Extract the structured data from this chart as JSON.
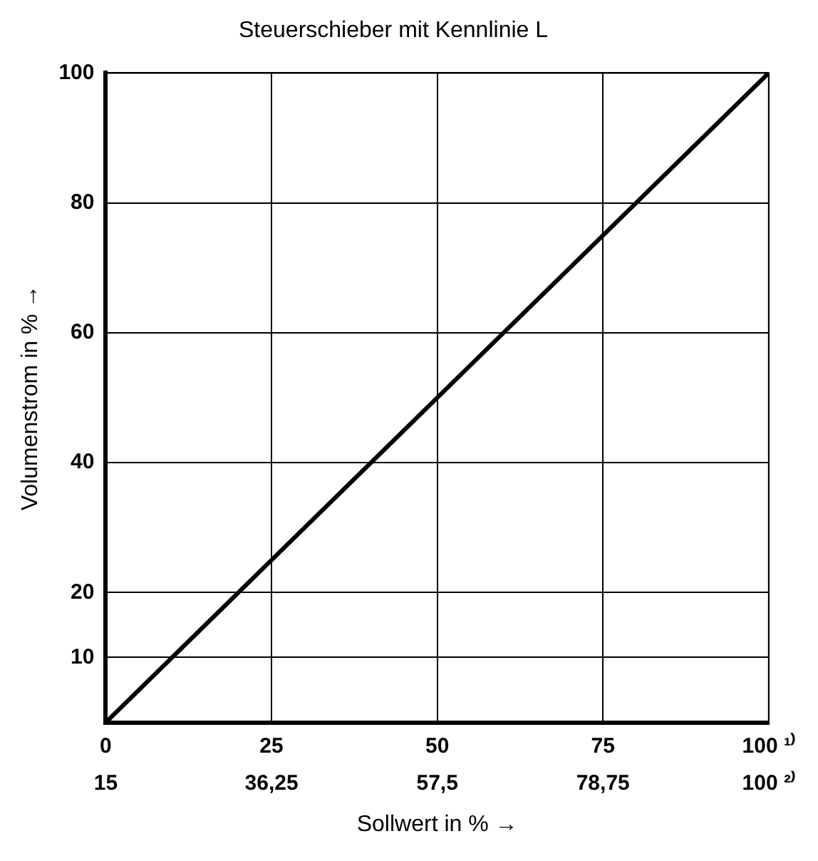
{
  "chart_data": {
    "type": "line",
    "title": "Steuerschieber mit Kennlinie L",
    "xlabel": "Sollwert in % →",
    "ylabel": "Volumenstrom in % →",
    "x": [
      0,
      100
    ],
    "series": [
      {
        "color": "#000000",
        "values": [
          0,
          100
        ]
      }
    ],
    "xlim": [
      0,
      100
    ],
    "xticks": [
      0,
      25,
      50,
      75,
      {
        "value": 100,
        "label": "100 ¹⁾"
      }
    ],
    "x2lim": [
      15,
      100
    ],
    "x2ticks": [
      15,
      {
        "value": 36.25,
        "label": "36,25"
      },
      {
        "value": 57.5,
        "label": "57,5"
      },
      {
        "value": 78.75,
        "label": "78,75"
      },
      {
        "value": 100,
        "label": "100 ²⁾"
      }
    ],
    "ylim": [
      0,
      100
    ],
    "yticks": [
      {
        "value": 0,
        "label": null
      },
      10,
      20,
      40,
      60,
      80,
      100
    ],
    "grid": true,
    "legend": false,
    "marker": "none",
    "line_style": "solid"
  }
}
